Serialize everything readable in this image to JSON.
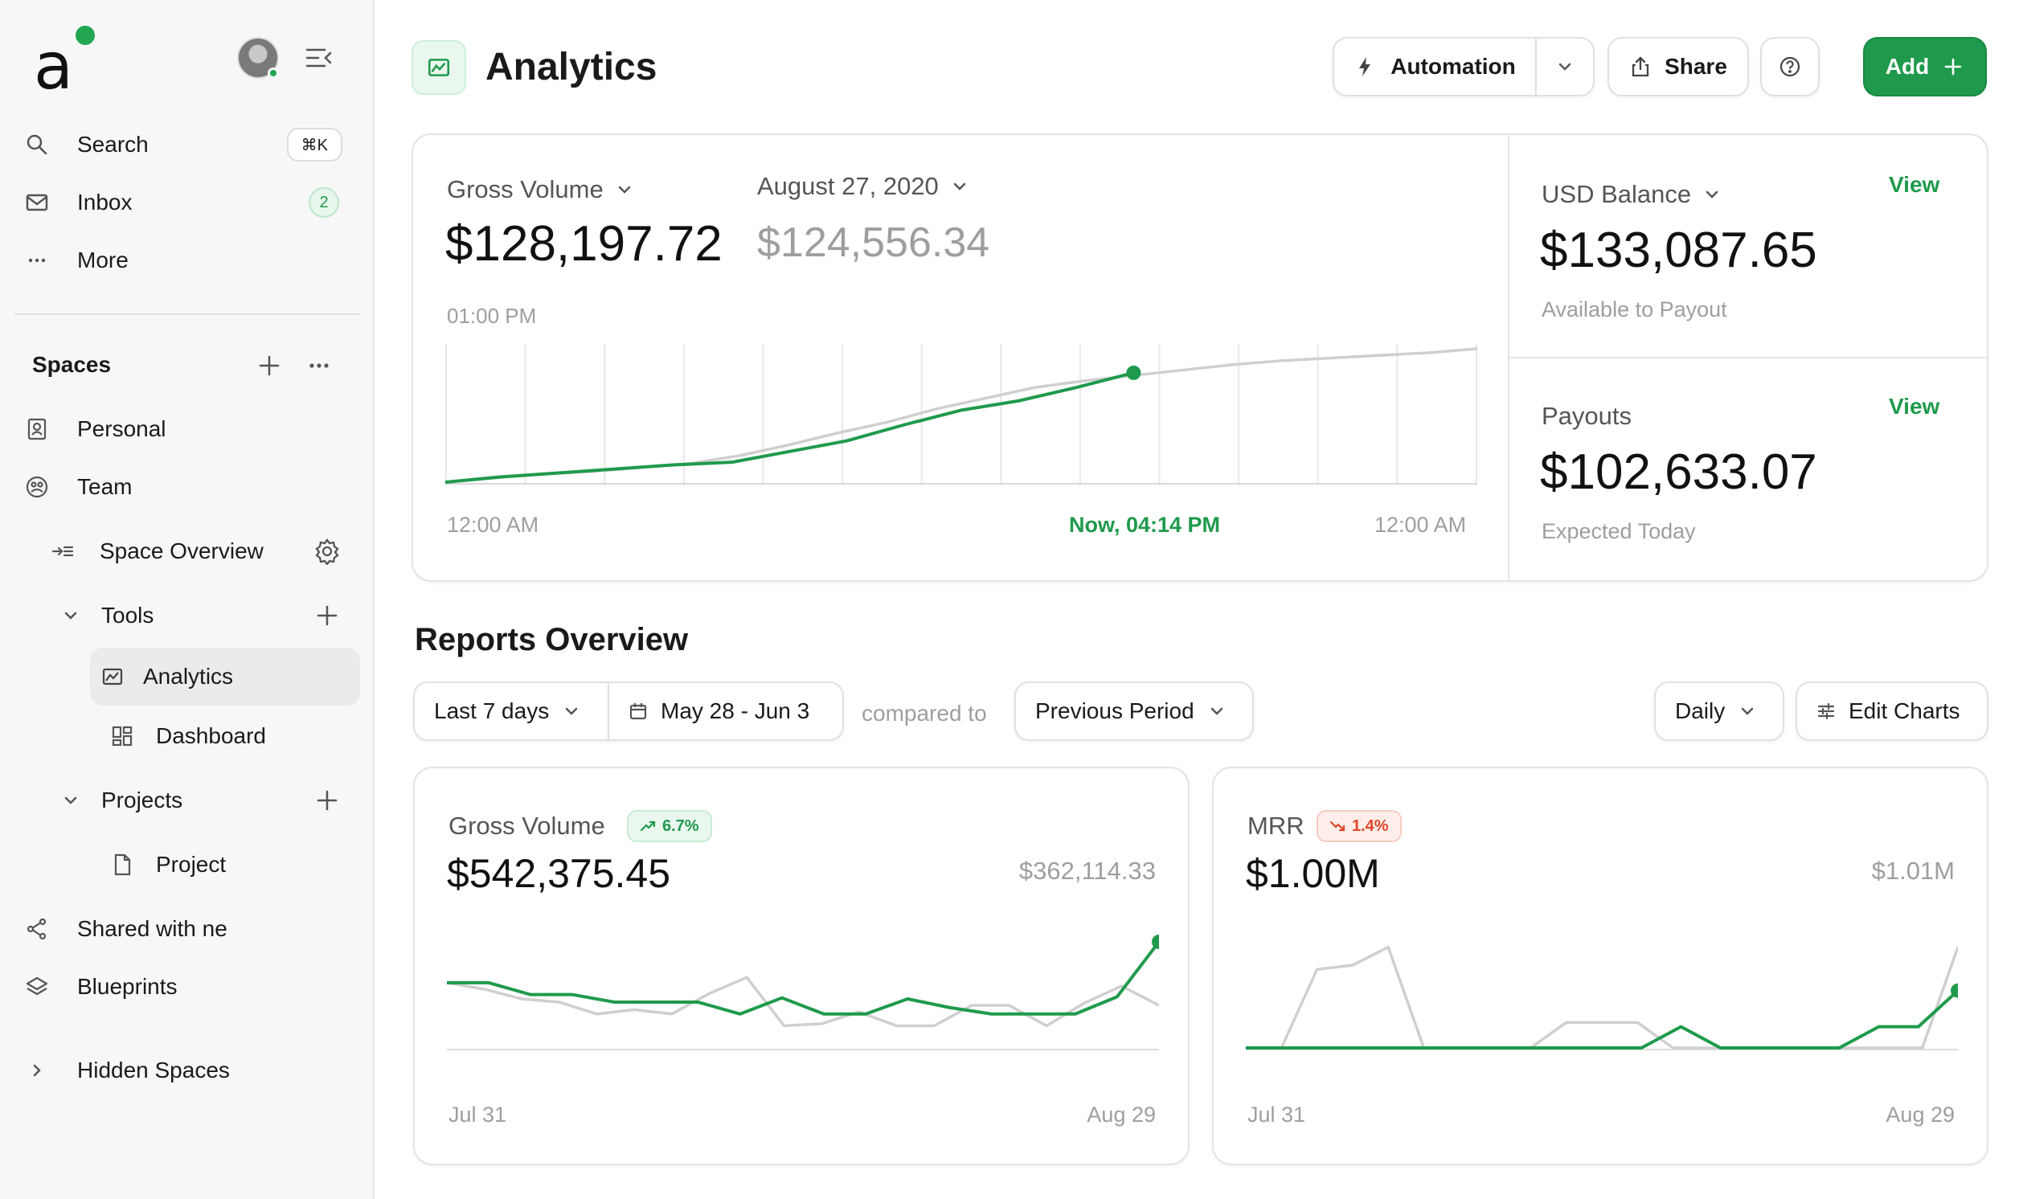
{
  "sidebar": {
    "search": {
      "label": "Search",
      "shortcut": "⌘K"
    },
    "inbox": {
      "label": "Inbox",
      "count": "2"
    },
    "more": {
      "label": "More"
    },
    "spaces_title": "Spaces",
    "personal": "Personal",
    "team": "Team",
    "space_overview": "Space Overview",
    "tools": "Tools",
    "analytics": "Analytics",
    "dashboard": "Dashboard",
    "projects": "Projects",
    "project": "Project",
    "shared": "Shared with ne",
    "blueprints": "Blueprints",
    "hidden_spaces": "Hidden Spaces"
  },
  "header": {
    "title": "Analytics",
    "automation": "Automation",
    "share": "Share",
    "add": "Add"
  },
  "overview": {
    "gross_label": "Gross Volume",
    "gross_value": "$128,197.72",
    "date_label": "August 27, 2020",
    "date_value": "$124,556.34",
    "time": "01:00 PM",
    "x_start": "12:00 AM",
    "x_now": "Now, 04:14 PM",
    "x_end": "12:00 AM"
  },
  "balance": {
    "label": "USD Balance",
    "view": "View",
    "value": "$133,087.65",
    "sub": "Available to Payout"
  },
  "payouts": {
    "label": "Payouts",
    "view": "View",
    "value": "$102,633.07",
    "sub": "Expected Today"
  },
  "reports": {
    "title": "Reports Overview",
    "range": "Last 7 days",
    "dates": "May 28 - Jun 3",
    "compared": "compared to",
    "period": "Previous Period",
    "interval": "Daily",
    "edit": "Edit Charts"
  },
  "gross_card": {
    "label": "Gross Volume",
    "change": "6.7%",
    "value": "$542,375.45",
    "prev": "$362,114.33",
    "x_start": "Jul 31",
    "x_end": "Aug 29"
  },
  "mrr_card": {
    "label": "MRR",
    "change": "1.4%",
    "value": "$1.00M",
    "prev": "$1.01M",
    "x_start": "Jul 31",
    "x_end": "Aug 29"
  },
  "colors": {
    "accent": "#1f9a4c",
    "comparison": "#cfcfcf",
    "negative": "#e0472a"
  },
  "chart_data": [
    {
      "type": "line",
      "xlabel": "",
      "ylabel": "",
      "series": [
        {
          "name": "",
          "values": [
            0,
            0.04,
            0.07,
            0.1,
            0.13,
            0.15,
            0.23,
            0.31,
            0.43,
            0.54,
            0.61,
            0.71,
            0.82
          ]
        },
        {
          "name": "",
          "values": [
            0,
            0.04,
            0.06,
            0.08,
            0.11,
            0.14,
            0.2,
            0.28,
            0.37,
            0.45,
            0.55,
            0.63,
            0.71,
            0.76,
            0.8,
            0.84,
            0.88,
            0.91,
            0.93,
            0.95,
            0.97,
            1
          ]
        }
      ]
    },
    {
      "type": "line",
      "xlabel": "",
      "ylabel": "",
      "series": [
        {
          "name": "",
          "values": [
            62,
            62,
            51,
            51,
            44,
            44,
            44,
            33,
            48,
            33,
            33,
            47,
            39,
            33,
            33,
            33,
            49,
            100
          ]
        },
        {
          "name": "",
          "values": [
            62,
            56,
            47,
            44,
            33,
            37,
            33,
            52,
            67,
            22,
            24,
            35,
            22,
            22,
            41,
            41,
            22,
            43,
            59,
            41
          ]
        }
      ]
    },
    {
      "type": "line",
      "xlabel": "",
      "ylabel": "",
      "series": [
        {
          "name": "",
          "values": [
            0,
            0,
            0,
            0,
            0,
            0,
            0,
            0,
            0,
            0,
            0,
            20,
            0,
            0,
            0,
            0,
            20,
            20,
            54
          ]
        },
        {
          "name": "",
          "values": [
            0,
            0,
            74,
            78,
            95,
            0,
            0,
            0,
            0,
            24,
            24,
            24,
            0,
            0,
            0,
            0,
            0,
            0,
            0,
            0,
            95
          ]
        }
      ]
    }
  ]
}
